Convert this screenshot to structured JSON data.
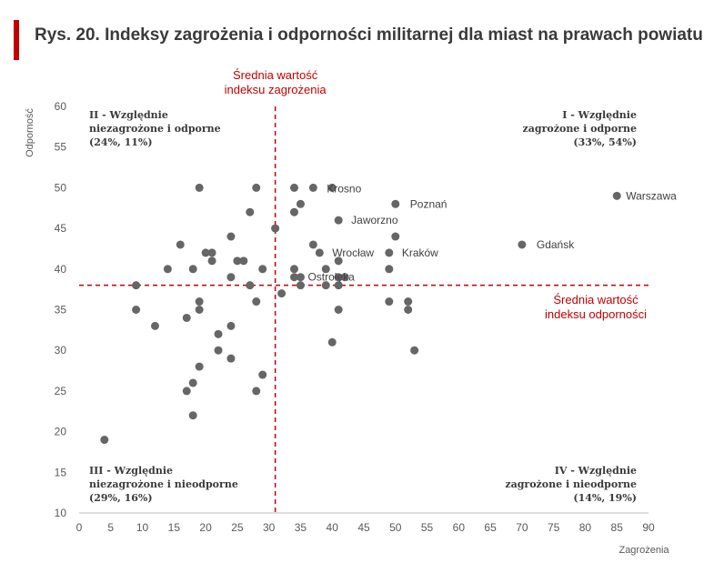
{
  "title": "Rys. 20. Indeksy zagrożenia i odporności militarnej dla miast na prawach powiatu",
  "chart_data": {
    "type": "scatter",
    "title": "Rys. 20. Indeksy zagrożenia i odporności militarnej dla miast na prawach powiatu",
    "xlabel": "Zagrożenia",
    "ylabel": "Odporność",
    "xlim": [
      0,
      90
    ],
    "ylim": [
      10,
      60
    ],
    "xticks": [
      "0",
      "5",
      "10",
      "15",
      "20",
      "25",
      "30",
      "35",
      "40",
      "45",
      "50",
      "55",
      "60",
      "65",
      "70",
      "75",
      "80",
      "85",
      "90"
    ],
    "yticks": [
      "10",
      "15",
      "20",
      "25",
      "30",
      "35",
      "40",
      "45",
      "50",
      "55",
      "60"
    ],
    "grid": false,
    "mean_x": 31,
    "mean_y": 38,
    "mean_x_label": [
      "Średnia wartość",
      "indeksu zagrożenia"
    ],
    "mean_y_label": [
      "Średnia wartość",
      "indeksu odporności"
    ],
    "quadrants": {
      "q1": [
        "I - Względnie",
        "zagrożone i odporne",
        "(33%, 54%)"
      ],
      "q2": [
        "II - Względnie",
        "niezagrożone i odporne",
        "(24%, 11%)"
      ],
      "q3": [
        "III - Względnie",
        "niezagrożone i nieodporne",
        "(29%, 16%)"
      ],
      "q4": [
        "IV - Względnie",
        "zagrożone i nieodporne",
        "(14%, 19%)"
      ]
    },
    "points": [
      {
        "x": 4,
        "y": 19
      },
      {
        "x": 9,
        "y": 38
      },
      {
        "x": 9,
        "y": 35
      },
      {
        "x": 12,
        "y": 33
      },
      {
        "x": 14,
        "y": 40
      },
      {
        "x": 16,
        "y": 43
      },
      {
        "x": 17,
        "y": 34
      },
      {
        "x": 17,
        "y": 25
      },
      {
        "x": 18,
        "y": 40
      },
      {
        "x": 18,
        "y": 26
      },
      {
        "x": 18,
        "y": 22
      },
      {
        "x": 19,
        "y": 50
      },
      {
        "x": 19,
        "y": 36
      },
      {
        "x": 19,
        "y": 35
      },
      {
        "x": 19,
        "y": 28
      },
      {
        "x": 20,
        "y": 42
      },
      {
        "x": 21,
        "y": 42
      },
      {
        "x": 21,
        "y": 41
      },
      {
        "x": 22,
        "y": 32
      },
      {
        "x": 22,
        "y": 30
      },
      {
        "x": 24,
        "y": 44
      },
      {
        "x": 24,
        "y": 39
      },
      {
        "x": 24,
        "y": 33
      },
      {
        "x": 24,
        "y": 29
      },
      {
        "x": 25,
        "y": 41
      },
      {
        "x": 26,
        "y": 41
      },
      {
        "x": 27,
        "y": 47
      },
      {
        "x": 27,
        "y": 38
      },
      {
        "x": 28,
        "y": 50
      },
      {
        "x": 28,
        "y": 36
      },
      {
        "x": 28,
        "y": 25
      },
      {
        "x": 29,
        "y": 40
      },
      {
        "x": 29,
        "y": 27
      },
      {
        "x": 31,
        "y": 45
      },
      {
        "x": 32,
        "y": 37
      },
      {
        "x": 34,
        "y": 50
      },
      {
        "x": 34,
        "y": 47
      },
      {
        "x": 34,
        "y": 40
      },
      {
        "x": 34,
        "y": 39
      },
      {
        "x": 35,
        "y": 48
      },
      {
        "x": 35,
        "y": 39
      },
      {
        "x": 35,
        "y": 38
      },
      {
        "x": 37,
        "y": 50
      },
      {
        "x": 37,
        "y": 43
      },
      {
        "x": 38,
        "y": 42
      },
      {
        "x": 39,
        "y": 40
      },
      {
        "x": 39,
        "y": 38
      },
      {
        "x": 40,
        "y": 50
      },
      {
        "x": 40,
        "y": 31
      },
      {
        "x": 41,
        "y": 46
      },
      {
        "x": 41,
        "y": 41
      },
      {
        "x": 41,
        "y": 39
      },
      {
        "x": 41,
        "y": 38
      },
      {
        "x": 41,
        "y": 35
      },
      {
        "x": 42,
        "y": 39
      },
      {
        "x": 49,
        "y": 42
      },
      {
        "x": 49,
        "y": 40
      },
      {
        "x": 49,
        "y": 36
      },
      {
        "x": 50,
        "y": 48
      },
      {
        "x": 50,
        "y": 44
      },
      {
        "x": 52,
        "y": 36
      },
      {
        "x": 52,
        "y": 35
      },
      {
        "x": 53,
        "y": 30
      },
      {
        "x": 70,
        "y": 43
      },
      {
        "x": 85,
        "y": 49
      }
    ],
    "labeled_points": [
      {
        "name": "Krosno",
        "x": 40,
        "y": 50,
        "dx": -6,
        "dy": 5
      },
      {
        "name": "Poznań",
        "x": 50,
        "y": 48,
        "dx": 16,
        "dy": 4
      },
      {
        "name": "Jaworzno",
        "x": 41,
        "y": 46,
        "dx": 14,
        "dy": 4
      },
      {
        "name": "Warszawa",
        "x": 85,
        "y": 49,
        "dx": 10,
        "dy": 4
      },
      {
        "name": "Gdańsk",
        "x": 70,
        "y": 43,
        "dx": 16,
        "dy": 4
      },
      {
        "name": "Wrocław",
        "x": 38,
        "y": 42,
        "dx": 14,
        "dy": 4
      },
      {
        "name": "Kraków",
        "x": 49,
        "y": 42,
        "dx": 14,
        "dy": 4
      },
      {
        "name": "Ostrołęka",
        "x": 35,
        "y": 39,
        "dx": 8,
        "dy": 4
      }
    ]
  }
}
